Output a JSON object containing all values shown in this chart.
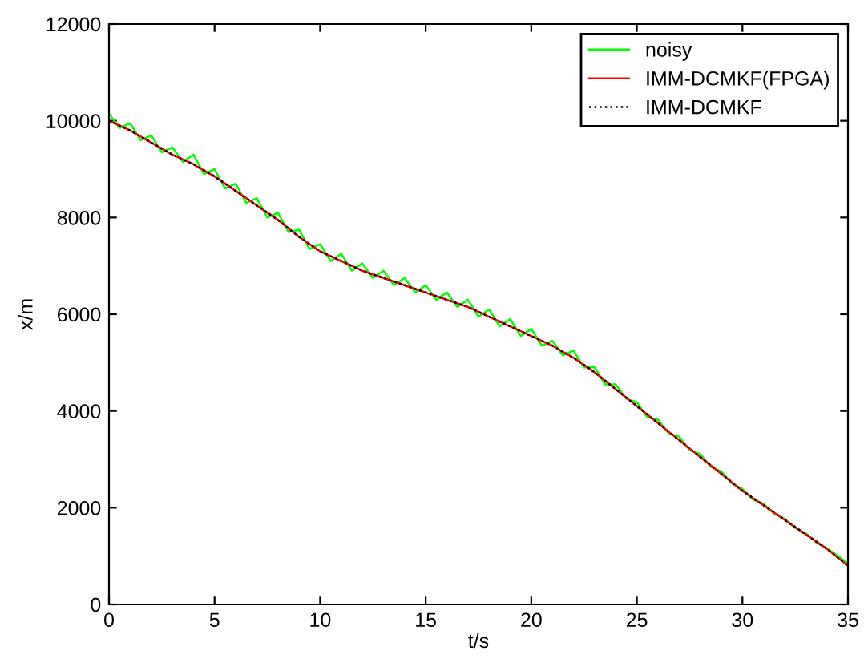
{
  "chart_data": {
    "type": "line",
    "xlabel": "t/s",
    "ylabel": "x/m",
    "xlim": [
      0,
      35
    ],
    "xticks": [
      0,
      5,
      10,
      15,
      20,
      25,
      30,
      35
    ],
    "ylim": [
      0,
      12000
    ],
    "yticks": [
      0,
      2000,
      4000,
      6000,
      8000,
      10000,
      12000
    ],
    "grid": false,
    "legend": "top right",
    "series": [
      {
        "name": "noisy",
        "color": "#00ff00",
        "x": [
          0,
          0.5,
          1,
          1.5,
          2,
          2.5,
          3,
          3.5,
          4,
          4.5,
          5,
          5.5,
          6,
          6.5,
          7,
          7.5,
          8,
          8.5,
          9,
          9.5,
          10,
          10.5,
          11,
          11.5,
          12,
          12.5,
          13,
          13.5,
          14,
          14.5,
          15,
          15.5,
          16,
          16.5,
          17,
          17.5,
          18,
          18.5,
          19,
          19.5,
          20,
          20.5,
          21,
          21.5,
          22,
          22.5,
          23,
          23.5,
          24,
          24.5,
          25,
          25.5,
          26,
          26.5,
          27,
          27.5,
          28,
          28.5,
          29,
          29.5,
          30,
          30.5,
          31,
          31.5,
          32,
          32.5,
          33,
          33.5,
          34,
          34.5,
          35
        ],
        "values": [
          10150,
          9850,
          9950,
          9600,
          9700,
          9350,
          9450,
          9150,
          9300,
          8900,
          9000,
          8600,
          8700,
          8300,
          8400,
          8000,
          8100,
          7700,
          7750,
          7350,
          7450,
          7100,
          7250,
          6900,
          7050,
          6750,
          6900,
          6600,
          6750,
          6450,
          6600,
          6300,
          6450,
          6150,
          6300,
          5950,
          6100,
          5750,
          5900,
          5550,
          5700,
          5350,
          5450,
          5150,
          5250,
          4900,
          4900,
          4550,
          4550,
          4250,
          4180,
          3870,
          3820,
          3540,
          3470,
          3190,
          3110,
          2850,
          2750,
          2500,
          2390,
          2170,
          2080,
          1880,
          1770,
          1580,
          1470,
          1280,
          1160,
          1010,
          850
        ]
      },
      {
        "name": "IMM-DCMKF(FPGA)",
        "color": "#ff0000",
        "x": [
          0,
          1,
          2,
          3,
          4,
          5,
          6,
          7,
          8,
          9,
          10,
          11,
          12,
          13,
          14,
          15,
          16,
          17,
          18,
          19,
          20,
          21,
          22,
          23,
          24,
          25,
          26,
          27,
          28,
          29,
          30,
          31,
          32,
          33,
          34,
          35
        ],
        "values": [
          10000,
          9800,
          9550,
          9300,
          9100,
          8850,
          8550,
          8250,
          7950,
          7600,
          7300,
          7100,
          6900,
          6750,
          6600,
          6450,
          6300,
          6150,
          5950,
          5750,
          5550,
          5350,
          5100,
          4800,
          4450,
          4100,
          3750,
          3400,
          3050,
          2700,
          2350,
          2050,
          1750,
          1450,
          1150,
          800
        ]
      },
      {
        "name": "IMM-DCMKF",
        "color": "#000000",
        "line_style": "dotted",
        "x": [
          0,
          1,
          2,
          3,
          4,
          5,
          6,
          7,
          8,
          9,
          10,
          11,
          12,
          13,
          14,
          15,
          16,
          17,
          18,
          19,
          20,
          21,
          22,
          23,
          24,
          25,
          26,
          27,
          28,
          29,
          30,
          31,
          32,
          33,
          34,
          35
        ],
        "values": [
          10000,
          9800,
          9550,
          9300,
          9100,
          8850,
          8550,
          8250,
          7950,
          7600,
          7300,
          7100,
          6900,
          6750,
          6600,
          6450,
          6300,
          6150,
          5950,
          5750,
          5550,
          5350,
          5100,
          4800,
          4450,
          4100,
          3750,
          3400,
          3050,
          2700,
          2350,
          2050,
          1750,
          1450,
          1150,
          800
        ]
      }
    ]
  }
}
